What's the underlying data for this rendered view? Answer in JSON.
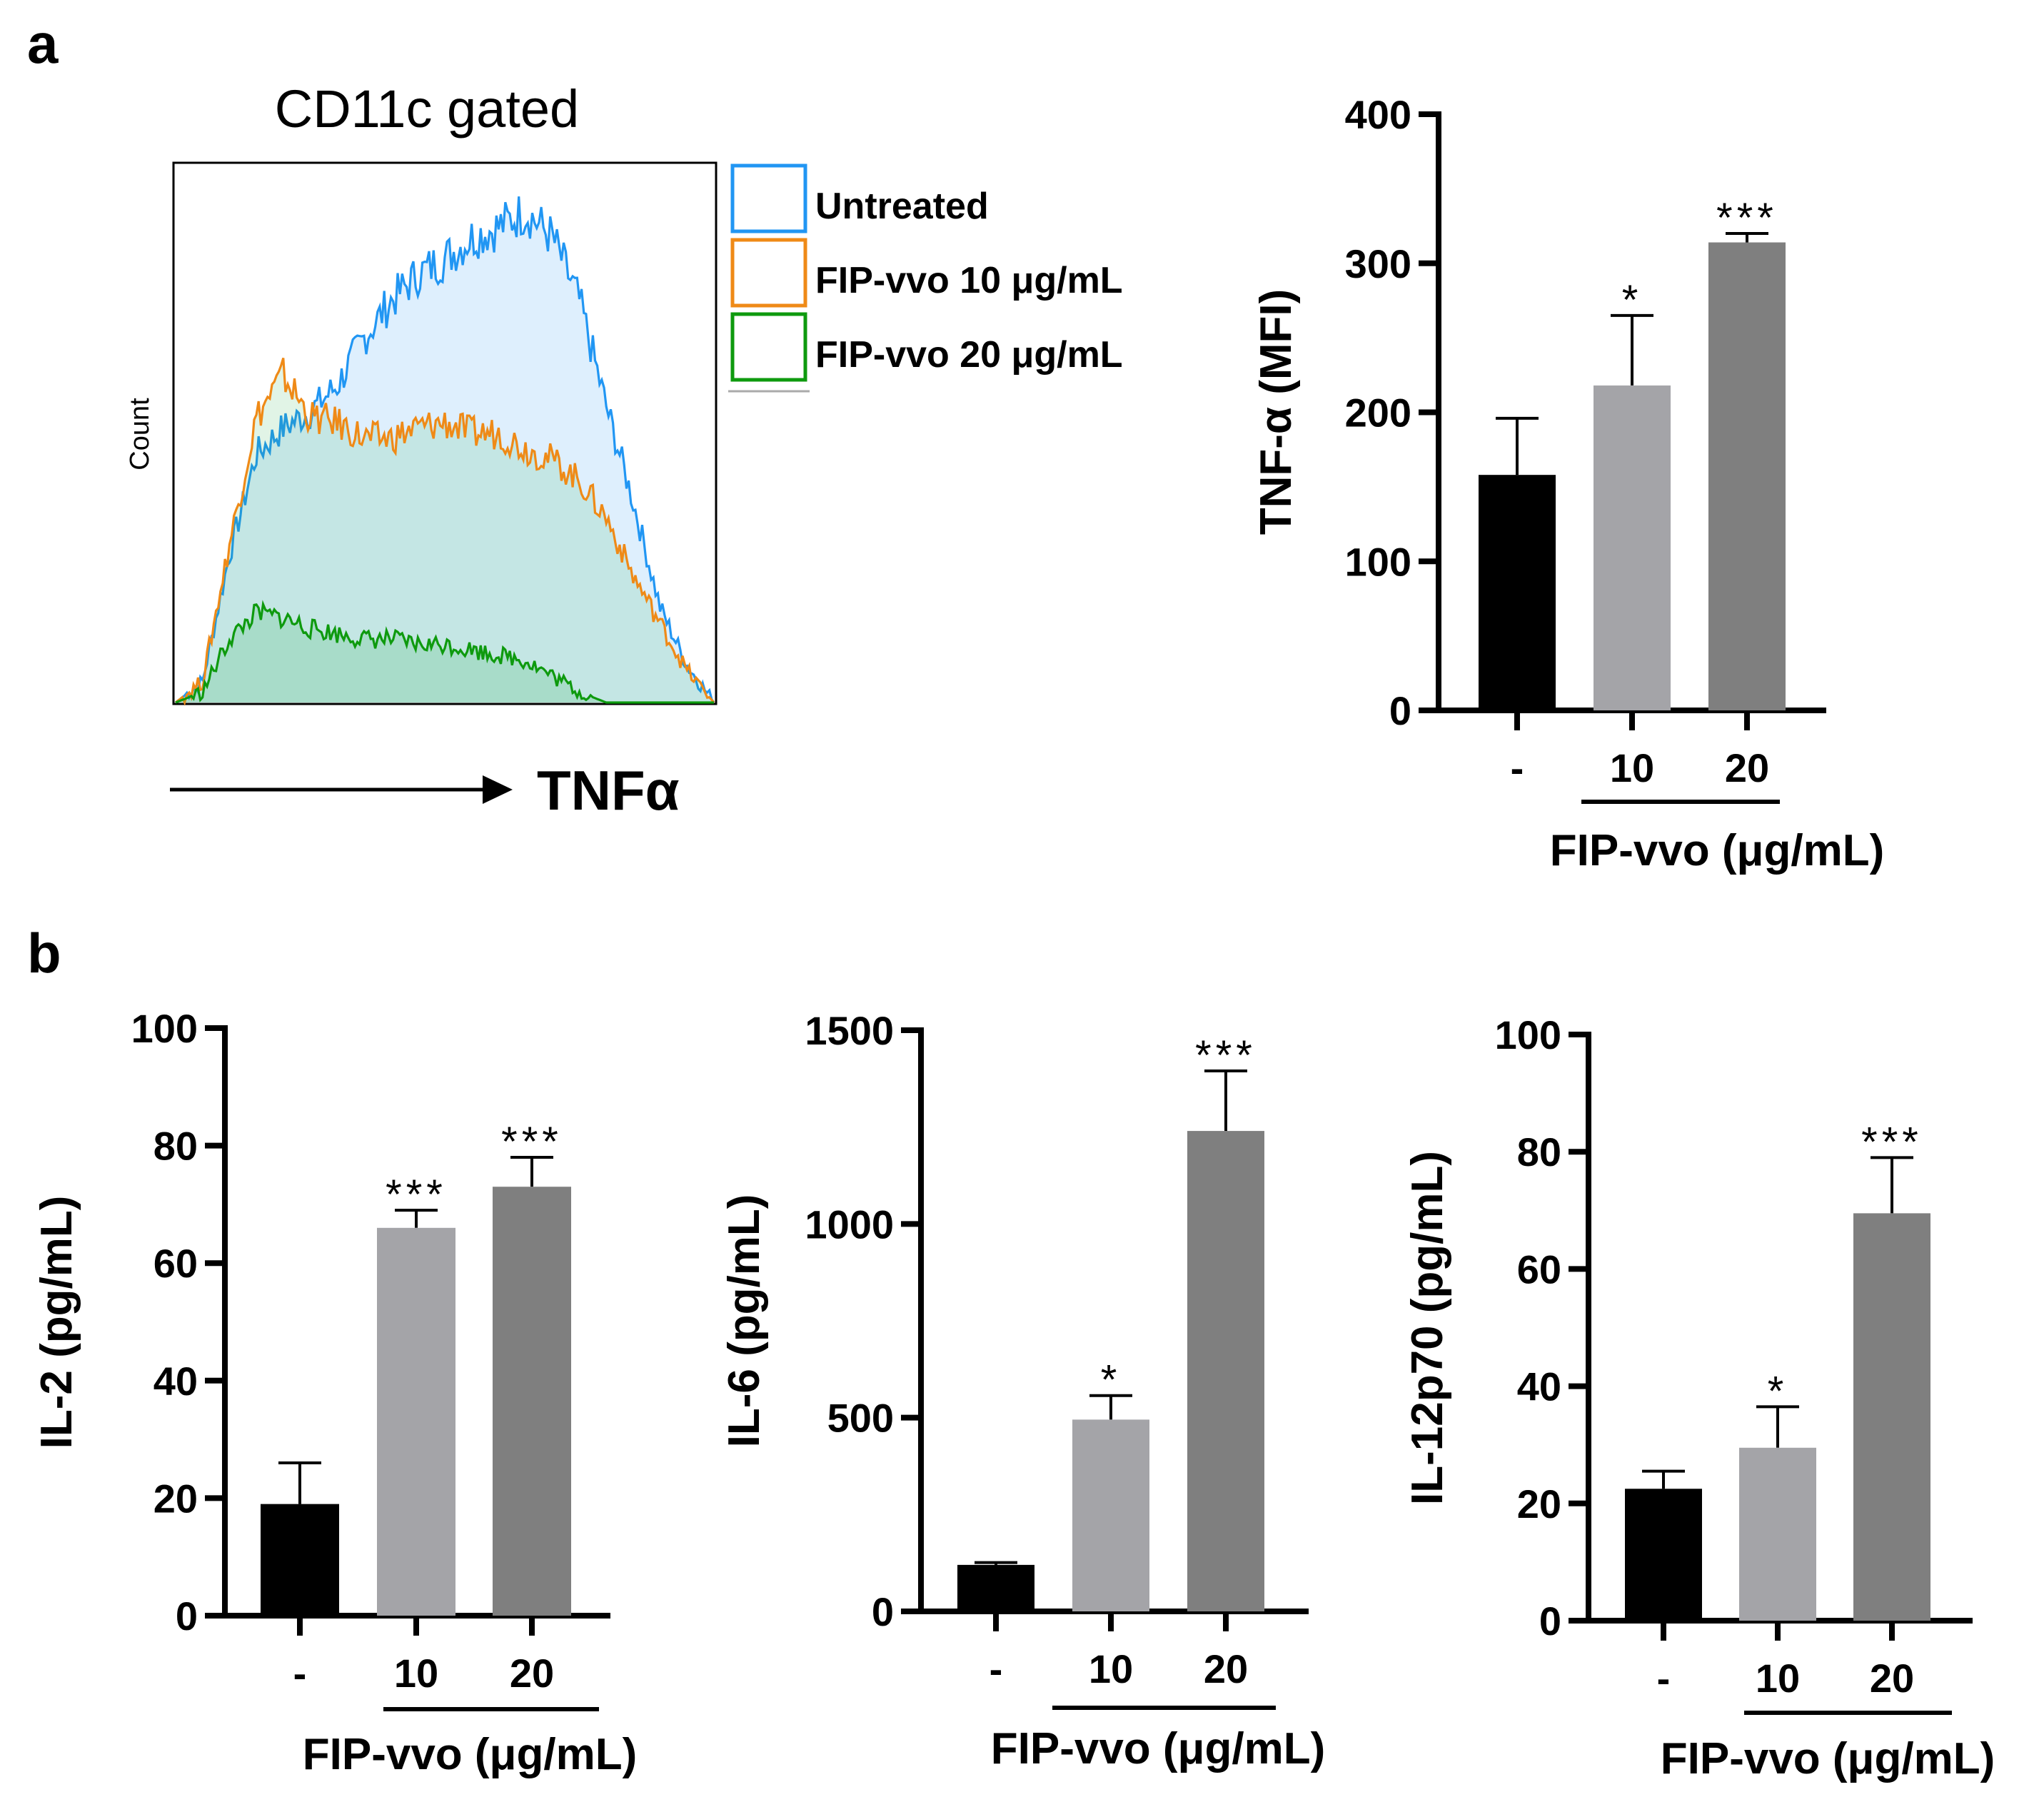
{
  "figure": {
    "panel_a_label": "a",
    "panel_b_label": "b"
  },
  "colors": {
    "untreated": "#2196f3",
    "fip10": "#ef8a17",
    "fip20": "#0e9a0e",
    "bar_control": "#000000",
    "bar_10": "#a4a4a8",
    "bar_20": "#7f7f7f"
  },
  "chart_data": [
    {
      "id": "histogram",
      "type": "area",
      "title": "CD11c gated",
      "xlabel": "TNFα",
      "ylabel": "Count",
      "legend_position": "right",
      "legend": [
        "Untreated",
        "FIP-vvo 10 μg/mL",
        "FIP-vvo 20 μg/mL"
      ],
      "x": [
        0,
        0.05,
        0.1,
        0.15,
        0.2,
        0.25,
        0.3,
        0.35,
        0.4,
        0.45,
        0.5,
        0.55,
        0.6,
        0.65,
        0.7,
        0.75,
        0.8,
        0.85,
        0.9,
        0.95,
        1.0
      ],
      "series": [
        {
          "name": "Untreated",
          "values": [
            0.0,
            0.04,
            0.28,
            0.47,
            0.52,
            0.55,
            0.6,
            0.69,
            0.76,
            0.81,
            0.84,
            0.88,
            0.9,
            0.93,
            0.88,
            0.76,
            0.56,
            0.38,
            0.18,
            0.07,
            0.0
          ]
        },
        {
          "name": "FIP-vvo 10 μg/mL",
          "values": [
            0.0,
            0.04,
            0.3,
            0.54,
            0.62,
            0.54,
            0.53,
            0.5,
            0.5,
            0.52,
            0.53,
            0.51,
            0.51,
            0.48,
            0.46,
            0.42,
            0.35,
            0.24,
            0.15,
            0.06,
            0.0
          ]
        },
        {
          "name": "FIP-vvo 20 μg/mL",
          "values": [
            0.0,
            0.02,
            0.12,
            0.17,
            0.16,
            0.14,
            0.13,
            0.12,
            0.12,
            0.11,
            0.11,
            0.1,
            0.09,
            0.08,
            0.05,
            0.02,
            0.0,
            0.0,
            0.0,
            0.0,
            0.0
          ]
        }
      ]
    },
    {
      "id": "tnf",
      "type": "bar",
      "categories": [
        "-",
        "10",
        "20"
      ],
      "values": [
        158,
        218,
        314
      ],
      "errors": [
        38,
        47,
        6
      ],
      "significance": [
        "",
        "*",
        "***"
      ],
      "ylabel": "TNF-α (MFI)",
      "xlabel": "FIP-vvo (μg/mL)",
      "ylim": [
        0,
        400
      ],
      "yticks": [
        "0",
        "100",
        "200",
        "300",
        "400"
      ]
    },
    {
      "id": "il2",
      "type": "bar",
      "categories": [
        "-",
        "10",
        "20"
      ],
      "values": [
        19,
        66,
        73
      ],
      "errors": [
        7,
        3,
        5
      ],
      "significance": [
        "",
        "***",
        "***"
      ],
      "ylabel": "IL-2 (pg/mL)",
      "xlabel": "FIP-vvo (μg/mL)",
      "ylim": [
        0,
        100
      ],
      "yticks": [
        "0",
        "20",
        "40",
        "60",
        "80",
        "100"
      ]
    },
    {
      "id": "il6",
      "type": "bar",
      "categories": [
        "-",
        "10",
        "20"
      ],
      "values": [
        120,
        495,
        1240
      ],
      "errors": [
        6,
        62,
        155
      ],
      "significance": [
        "",
        "*",
        "***"
      ],
      "ylabel": "IL-6 (pg/mL)",
      "xlabel": "FIP-vvo (μg/mL)",
      "ylim": [
        0,
        1500
      ],
      "yticks": [
        "0",
        "500",
        "1000",
        "1500"
      ]
    },
    {
      "id": "il12",
      "type": "bar",
      "categories": [
        "-",
        "10",
        "20"
      ],
      "values": [
        22.5,
        29.5,
        69.5
      ],
      "errors": [
        3,
        7,
        9.5
      ],
      "significance": [
        "",
        "*",
        "***"
      ],
      "ylabel": "IL-12p70 (pg/mL)",
      "xlabel": "FIP-vvo (μg/mL)",
      "ylim": [
        0,
        100
      ],
      "yticks": [
        "0",
        "20",
        "40",
        "60",
        "80",
        "100"
      ]
    }
  ]
}
